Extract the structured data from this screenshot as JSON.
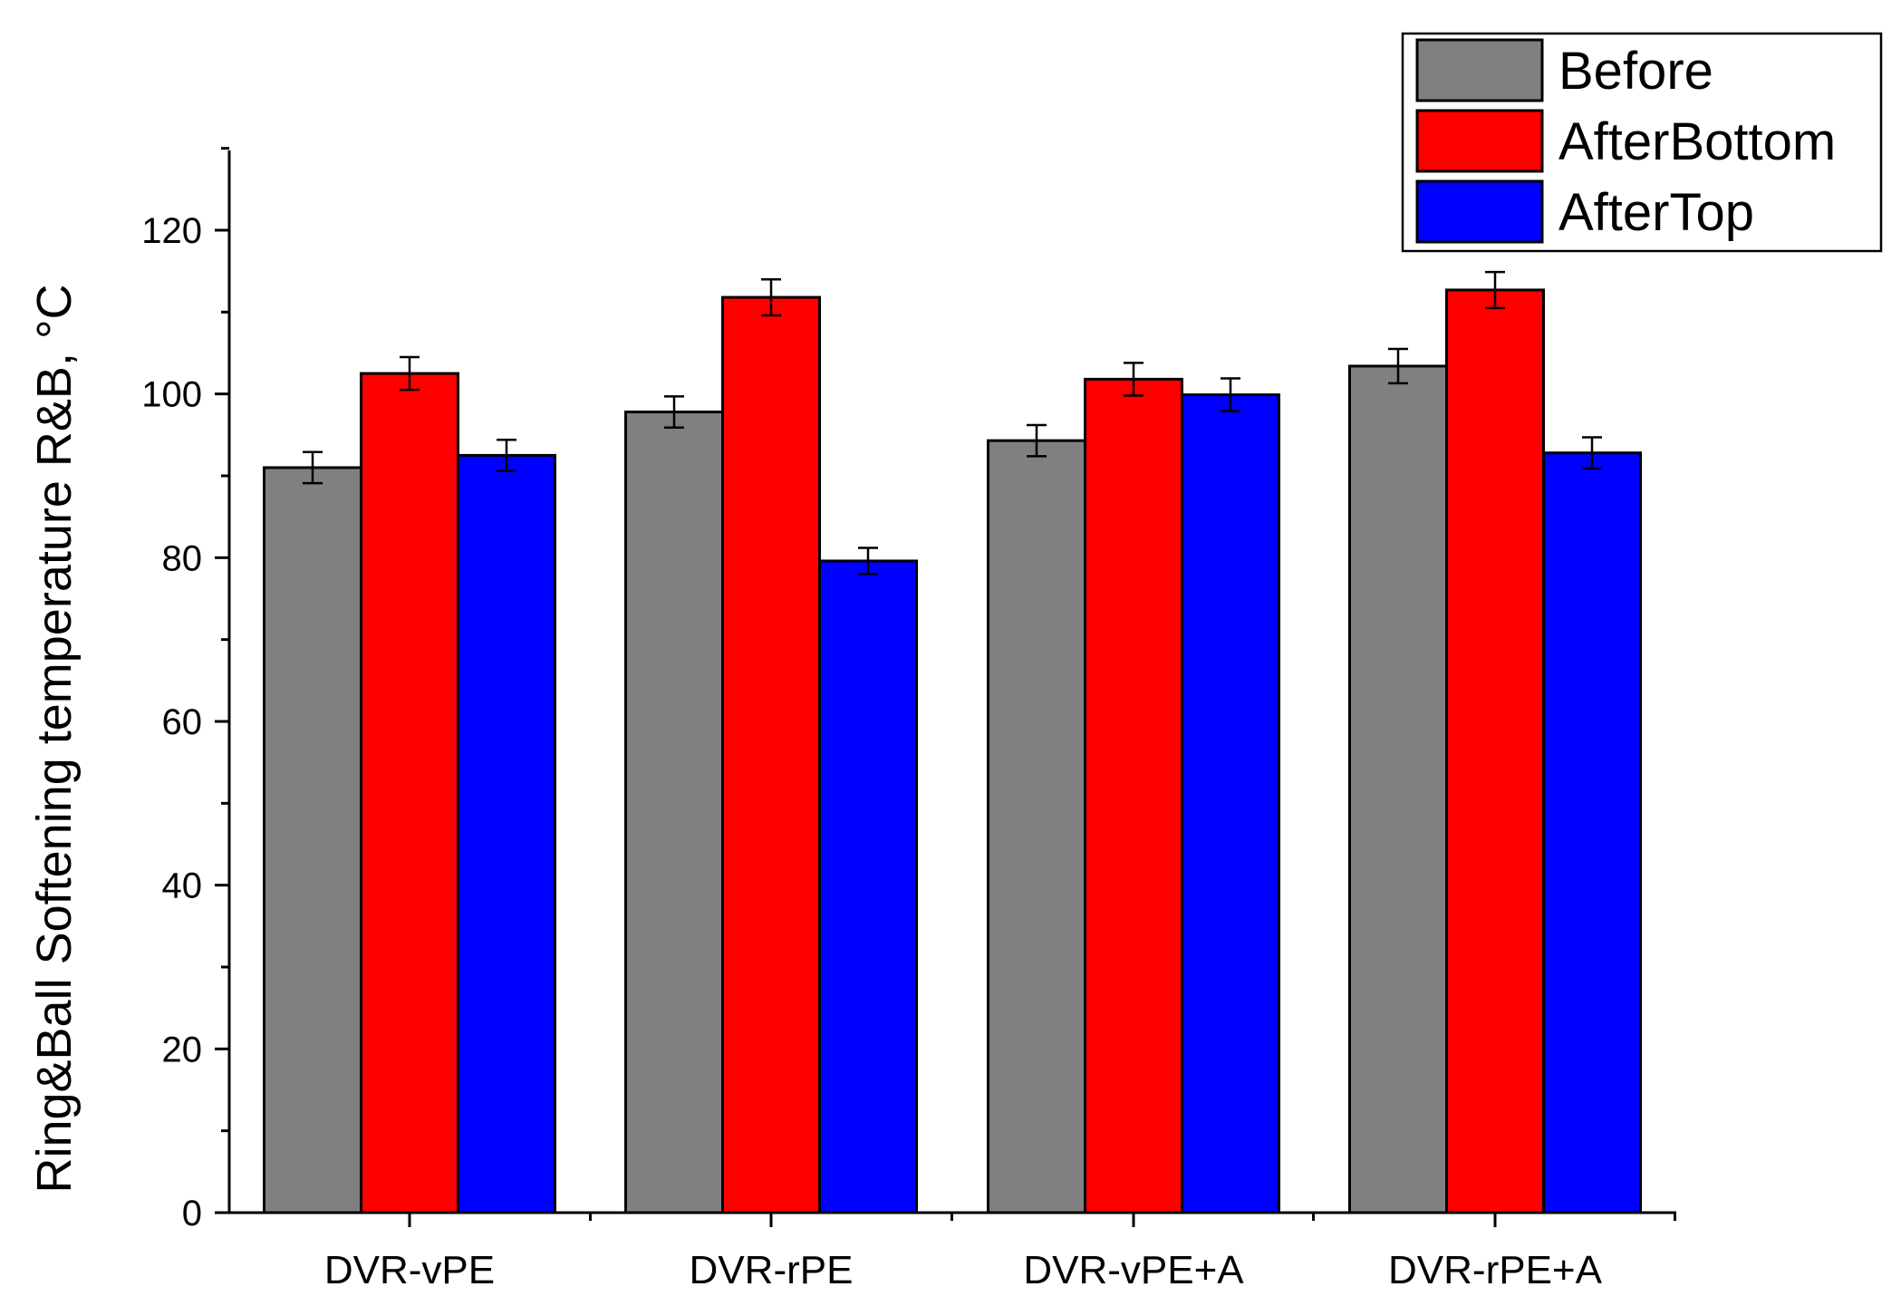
{
  "chart_data": {
    "type": "bar",
    "title": "",
    "xlabel": "",
    "ylabel": "Ring&Ball Softening temperature R&B, °C",
    "ylim": [
      0,
      130
    ],
    "yticks": [
      0,
      20,
      40,
      60,
      80,
      100,
      120
    ],
    "grid": false,
    "legend_position": "top-right",
    "categories": [
      "DVR-vPE",
      "DVR-rPE",
      "DVR-vPE+A",
      "DVR-rPE+A"
    ],
    "series": [
      {
        "name": "Before",
        "color": "#808080",
        "values": [
          91.0,
          97.8,
          94.3,
          103.4
        ],
        "errors": [
          1.9,
          1.9,
          1.9,
          2.1
        ]
      },
      {
        "name": "AfterBottom",
        "color": "#ff0000",
        "values": [
          102.5,
          111.8,
          101.8,
          112.7
        ],
        "errors": [
          2.0,
          2.2,
          2.0,
          2.2
        ]
      },
      {
        "name": "AfterTop",
        "color": "#0000ff",
        "values": [
          92.5,
          79.6,
          99.9,
          92.8
        ],
        "errors": [
          1.9,
          1.6,
          2.0,
          1.9
        ]
      }
    ]
  }
}
